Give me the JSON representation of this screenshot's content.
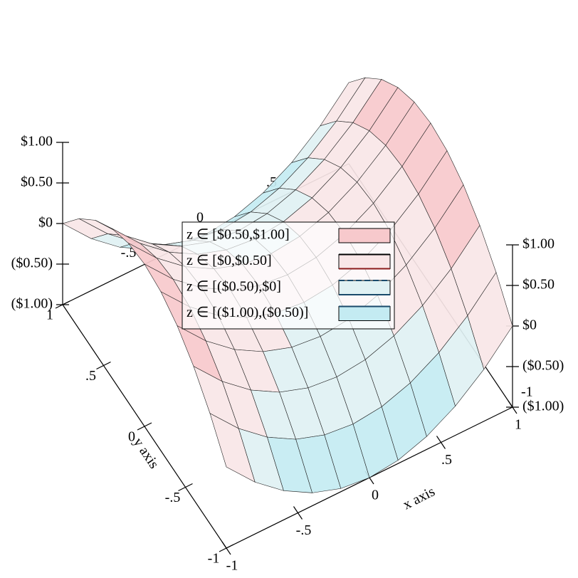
{
  "chart_data": {
    "type": "surface3d",
    "x_label": "x axis",
    "y_label": "y axis",
    "x": [
      -1,
      -0.8,
      -0.6,
      -0.4,
      -0.2,
      0,
      0.2,
      0.4,
      0.6,
      0.8,
      1
    ],
    "y": [
      -1,
      -0.8,
      -0.6,
      -0.4,
      -0.2,
      0,
      0.2,
      0.4,
      0.6,
      0.8,
      1
    ],
    "z": [
      [
        0,
        0.36,
        0.64,
        0.84,
        0.96,
        1,
        0.96,
        0.84,
        0.64,
        0.36,
        0
      ],
      [
        -0.36,
        0,
        0.28,
        0.48,
        0.6,
        0.64,
        0.6,
        0.48,
        0.28,
        0,
        -0.36
      ],
      [
        -0.64,
        -0.28,
        0,
        0.2,
        0.32,
        0.36,
        0.32,
        0.2,
        0,
        -0.28,
        -0.64
      ],
      [
        -0.84,
        -0.48,
        -0.2,
        0,
        0.12,
        0.16,
        0.12,
        0,
        -0.2,
        -0.48,
        -0.84
      ],
      [
        -0.96,
        -0.6,
        -0.32,
        -0.12,
        0,
        0.04,
        0,
        -0.12,
        -0.32,
        -0.6,
        -0.96
      ],
      [
        -1,
        -0.64,
        -0.36,
        -0.16,
        -0.04,
        0,
        -0.04,
        -0.16,
        -0.36,
        -0.64,
        -1
      ],
      [
        -0.96,
        -0.6,
        -0.32,
        -0.12,
        0,
        0.04,
        0,
        -0.12,
        -0.32,
        -0.6,
        -0.96
      ],
      [
        -0.84,
        -0.48,
        -0.2,
        0,
        0.12,
        0.16,
        0.12,
        0,
        -0.2,
        -0.48,
        -0.84
      ],
      [
        -0.64,
        -0.28,
        0,
        0.2,
        0.32,
        0.36,
        0.32,
        0.2,
        0,
        -0.28,
        -0.64
      ],
      [
        -0.36,
        0,
        0.28,
        0.48,
        0.6,
        0.64,
        0.6,
        0.48,
        0.28,
        0,
        -0.36
      ],
      [
        0,
        0.36,
        0.64,
        0.84,
        0.96,
        1,
        0.96,
        0.84,
        0.64,
        0.36,
        0
      ]
    ],
    "xlim": [
      -1,
      1
    ],
    "ylim": [
      -1,
      1
    ],
    "zlim": [
      -1,
      1
    ],
    "xticks": [
      -1,
      {
        "value": -0.5,
        "label": "-.5"
      },
      0,
      {
        "value": 0.5,
        "label": ".5"
      },
      1
    ],
    "yticks": [
      -1,
      {
        "value": -0.5,
        "label": "-.5"
      },
      0,
      {
        "value": 0.5,
        "label": ".5"
      },
      1
    ],
    "zticks": [
      {
        "value": -1,
        "label": "($1.00)"
      },
      {
        "value": -0.5,
        "label": "($0.50)"
      },
      {
        "value": 0,
        "label": "$0"
      },
      {
        "value": 0.5,
        "label": "$0.50"
      },
      {
        "value": 1,
        "label": "$1.00"
      }
    ],
    "intervals": [
      {
        "name": "z ∈ [$0.50,$1.00]",
        "range": [
          0.5,
          1
        ],
        "color": "#f7c9cc",
        "line": "#8b1a1a"
      },
      {
        "name": "z ∈ [$0,$0.50]",
        "range": [
          0,
          0.5
        ],
        "color": "#f9e6e7",
        "line": "#000000"
      },
      {
        "name": "z ∈ [($0.50),$0]",
        "range": [
          -0.5,
          0
        ],
        "color": "#e0f1f3",
        "line": "#1a4a6b"
      },
      {
        "name": "z ∈ [($1.00),($0.50)]",
        "range": [
          -1,
          -0.5
        ],
        "color": "#c4ebf2",
        "line": "#1a4a6b"
      }
    ]
  }
}
